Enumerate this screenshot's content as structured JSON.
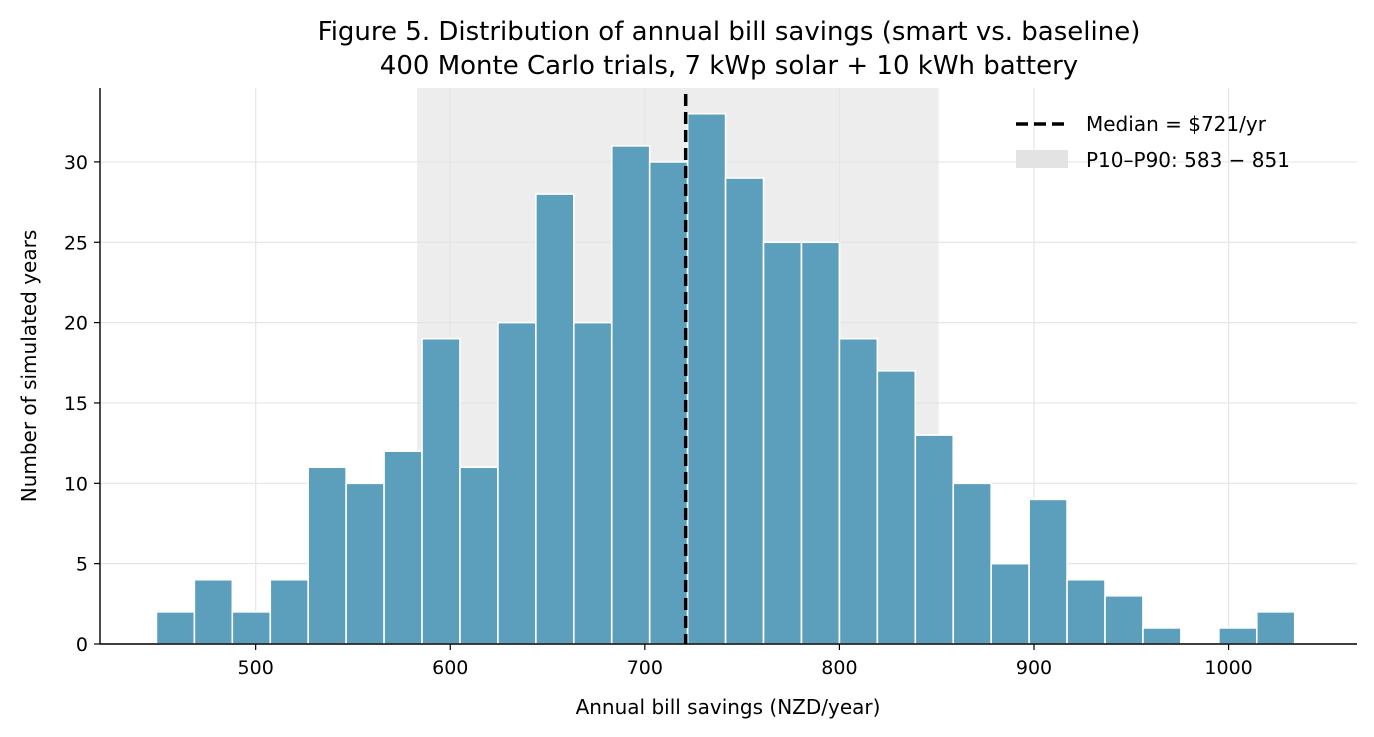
{
  "chart_data": {
    "type": "bar",
    "title": "Figure 5. Distribution of annual bill savings (smart vs. baseline)",
    "subtitle": "400 Monte Carlo trials, 7 kWp solar + 10 kWh battery",
    "xlabel": "Annual bill savings (NZD/year)",
    "ylabel": "Number of simulated years",
    "xlim": [
      420,
      1066
    ],
    "ylim": [
      0,
      34.6
    ],
    "x_ticks": [
      500,
      600,
      700,
      800,
      900,
      1000
    ],
    "y_ticks": [
      0,
      5,
      10,
      15,
      20,
      25,
      30
    ],
    "grid": true,
    "bin_width": 19.5,
    "bins": [
      {
        "x0": 449.0,
        "x1": 468.5,
        "count": 2
      },
      {
        "x0": 468.5,
        "x1": 488.0,
        "count": 4
      },
      {
        "x0": 488.0,
        "x1": 507.5,
        "count": 2
      },
      {
        "x0": 507.5,
        "x1": 527.0,
        "count": 4
      },
      {
        "x0": 527.0,
        "x1": 546.5,
        "count": 11
      },
      {
        "x0": 546.5,
        "x1": 566.0,
        "count": 10
      },
      {
        "x0": 566.0,
        "x1": 585.5,
        "count": 12
      },
      {
        "x0": 585.5,
        "x1": 605.0,
        "count": 19
      },
      {
        "x0": 605.0,
        "x1": 624.5,
        "count": 11
      },
      {
        "x0": 624.5,
        "x1": 644.0,
        "count": 20
      },
      {
        "x0": 644.0,
        "x1": 663.5,
        "count": 28
      },
      {
        "x0": 663.5,
        "x1": 683.0,
        "count": 20
      },
      {
        "x0": 683.0,
        "x1": 702.5,
        "count": 31
      },
      {
        "x0": 702.5,
        "x1": 722.0,
        "count": 30
      },
      {
        "x0": 722.0,
        "x1": 741.5,
        "count": 33
      },
      {
        "x0": 741.5,
        "x1": 761.0,
        "count": 29
      },
      {
        "x0": 761.0,
        "x1": 780.5,
        "count": 25
      },
      {
        "x0": 780.5,
        "x1": 800.0,
        "count": 25
      },
      {
        "x0": 800.0,
        "x1": 819.5,
        "count": 19
      },
      {
        "x0": 819.5,
        "x1": 839.0,
        "count": 17
      },
      {
        "x0": 839.0,
        "x1": 858.5,
        "count": 13
      },
      {
        "x0": 858.5,
        "x1": 878.0,
        "count": 10
      },
      {
        "x0": 878.0,
        "x1": 897.5,
        "count": 5
      },
      {
        "x0": 897.5,
        "x1": 917.0,
        "count": 9
      },
      {
        "x0": 917.0,
        "x1": 936.5,
        "count": 4
      },
      {
        "x0": 936.5,
        "x1": 956.0,
        "count": 3
      },
      {
        "x0": 956.0,
        "x1": 975.5,
        "count": 1
      },
      {
        "x0": 975.5,
        "x1": 995.0,
        "count": 0
      },
      {
        "x0": 995.0,
        "x1": 1014.5,
        "count": 1
      },
      {
        "x0": 1014.5,
        "x1": 1034.0,
        "count": 2
      }
    ],
    "median": 721,
    "p10": 583,
    "p90": 851,
    "legend": {
      "position": "upper right",
      "median_label": "Median = $721/yr",
      "band_label": "P10–P90: 583 − 851"
    },
    "colors": {
      "bar": "#5c9fbd",
      "bar_edge": "#ffffff",
      "band": "#e3e3e3",
      "median_line": "#000000",
      "grid": "#e6e6e6"
    }
  }
}
